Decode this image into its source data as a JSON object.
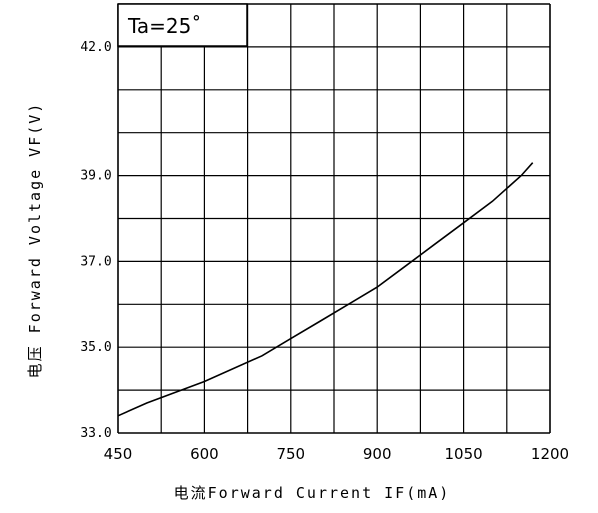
{
  "chart_data": {
    "type": "line",
    "title": "",
    "annotation": "Ta=25˚",
    "xlabel": "电流Forward Current IF(mA)",
    "ylabel": "电压 Forward Voltage VF(V)",
    "x_ticks": [
      "450",
      "600",
      "750",
      "900",
      "1050",
      "1200"
    ],
    "y_tick_labels": [
      "33.0",
      "35.0",
      "37.0",
      "39.0",
      "42.0"
    ],
    "xlim": [
      450,
      1200
    ],
    "ylim": [
      33.0,
      43.0
    ],
    "grid": true,
    "series": [
      {
        "x": [
          450,
          500,
          600,
          700,
          750,
          800,
          850,
          900,
          950,
          1000,
          1050,
          1100,
          1150,
          1170
        ],
        "y": [
          33.4,
          33.7,
          34.2,
          34.8,
          35.2,
          35.6,
          36.0,
          36.4,
          36.9,
          37.4,
          37.9,
          38.4,
          39.0,
          39.3
        ]
      }
    ]
  }
}
